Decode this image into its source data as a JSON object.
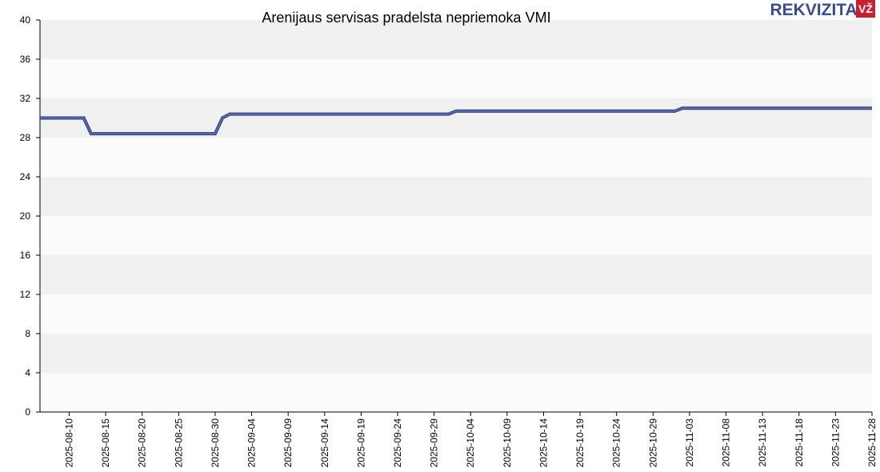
{
  "chart_data": {
    "type": "line",
    "title": "Arenijaus servisas pradelsta nepriemoka VMI",
    "brand": "REKVIZITAI",
    "brand_badge": "VŽ",
    "x": [
      "2025-08-06",
      "2025-08-12",
      "2025-08-13",
      "2025-08-30",
      "2025-08-31",
      "2025-09-01",
      "2025-10-01",
      "2025-10-02",
      "2025-11-01",
      "2025-11-02",
      "2025-11-28"
    ],
    "series": [
      {
        "color": "#5a6bb0",
        "values": [
          30.0,
          30.0,
          28.4,
          28.4,
          30.0,
          30.4,
          30.4,
          30.7,
          30.7,
          31.0,
          31.0
        ]
      }
    ],
    "xlim": [
      "2025-08-06",
      "2025-11-28"
    ],
    "xticks": [
      "2025-08-10",
      "2025-08-15",
      "2025-08-20",
      "2025-08-25",
      "2025-08-30",
      "2025-09-04",
      "2025-09-09",
      "2025-09-14",
      "2025-09-19",
      "2025-09-24",
      "2025-09-29",
      "2025-10-04",
      "2025-10-09",
      "2025-10-14",
      "2025-10-19",
      "2025-10-24",
      "2025-10-29",
      "2025-11-03",
      "2025-11-08",
      "2025-11-13",
      "2025-11-18",
      "2025-11-23",
      "2025-11-28"
    ],
    "ylim": [
      0,
      40
    ],
    "yticks": [
      0,
      4,
      8,
      12,
      16,
      20,
      24,
      28,
      32,
      36,
      40
    ],
    "grid": "bands"
  }
}
